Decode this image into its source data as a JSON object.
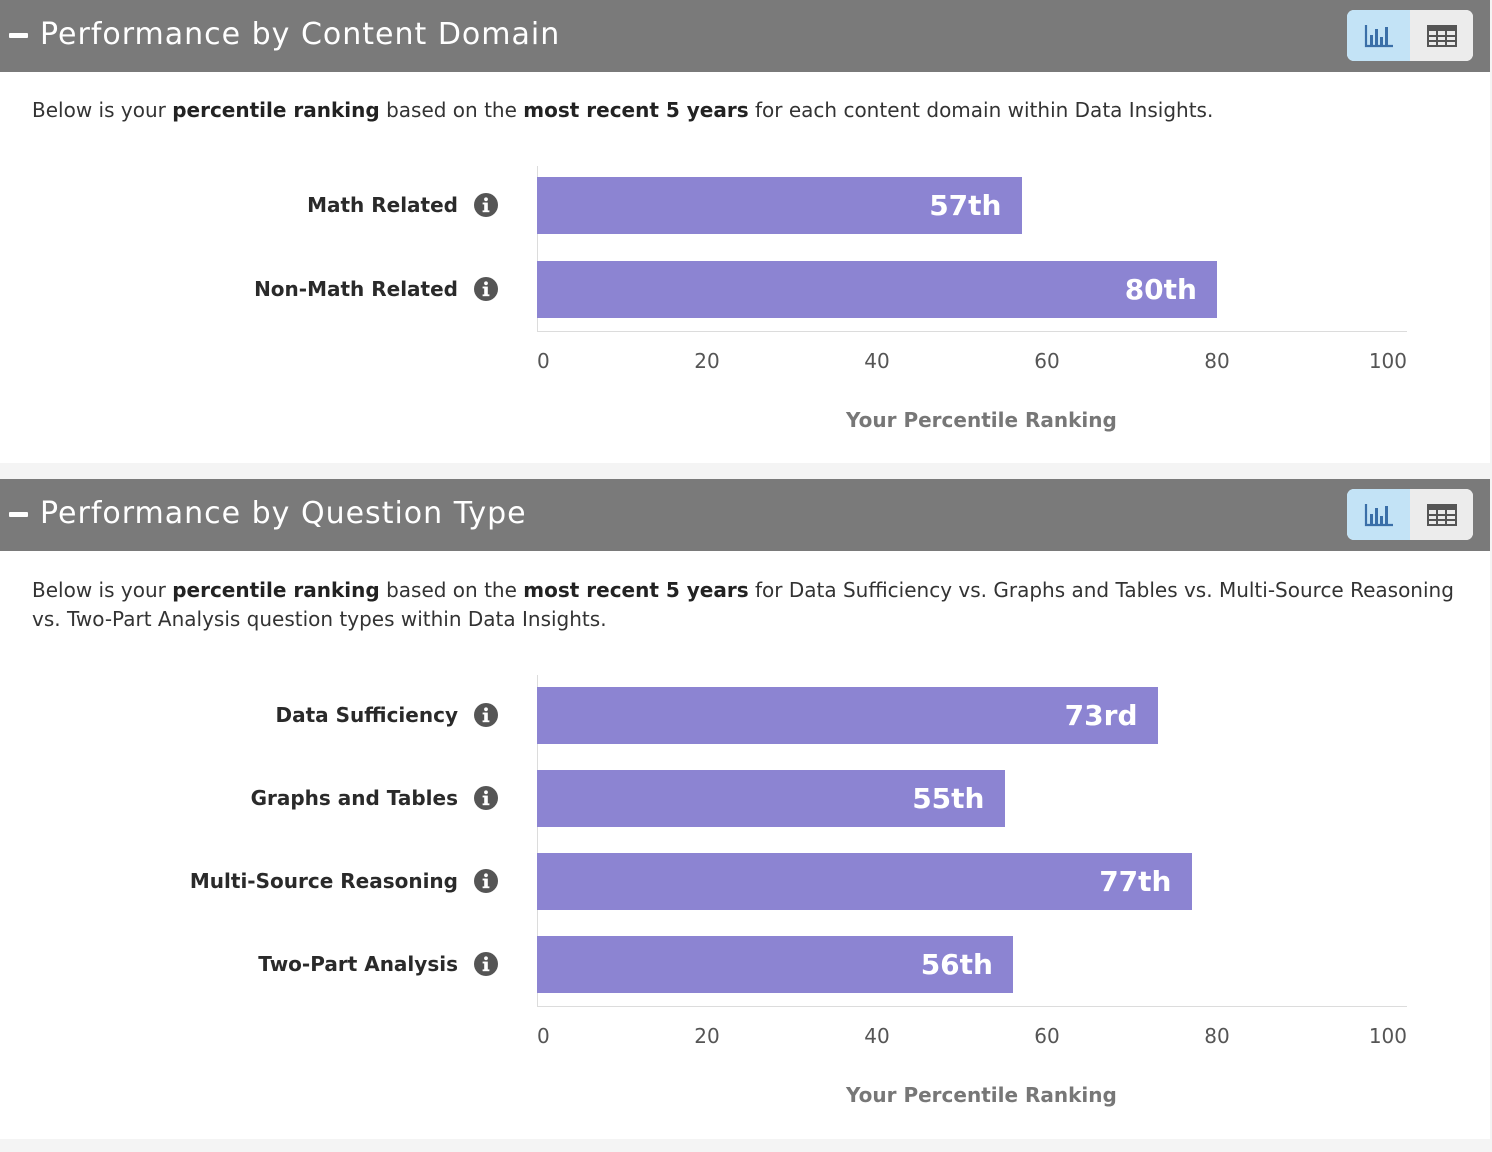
{
  "sections": [
    {
      "title": "Performance by Content Domain",
      "description": {
        "part1": "Below is your ",
        "bold1": "percentile ranking",
        "part2": " based on the ",
        "bold2": "most recent 5 years",
        "part3": " for each content domain within Data Insights."
      },
      "toggle": {
        "active": "chart",
        "icons": [
          "bar-chart-icon",
          "table-icon"
        ]
      }
    },
    {
      "title": "Performance by Question Type",
      "description": {
        "part1": "Below is your ",
        "bold1": "percentile ranking",
        "part2": " based on the ",
        "bold2": "most recent 5 years",
        "part3": " for Data Sufficiency vs. Graphs and Tables vs. Multi-Source Reasoning vs. Two-Part Analysis question types within Data Insights."
      },
      "toggle": {
        "active": "chart",
        "icons": [
          "bar-chart-icon",
          "table-icon"
        ]
      }
    }
  ],
  "chart_data": [
    {
      "type": "bar",
      "orientation": "horizontal",
      "categories": [
        "Math Related",
        "Non-Math Related"
      ],
      "values": [
        57,
        80
      ],
      "value_labels": [
        "57th",
        "80th"
      ],
      "xlabel": "Your Percentile Ranking",
      "xlim": [
        0,
        100
      ],
      "xticks": [
        "0",
        "20",
        "40",
        "60",
        "80",
        "100"
      ],
      "bar_color": "#8c84d2",
      "grid": false
    },
    {
      "type": "bar",
      "orientation": "horizontal",
      "categories": [
        "Data Sufficiency",
        "Graphs and Tables",
        "Multi-Source Reasoning",
        "Two-Part Analysis"
      ],
      "values": [
        73,
        55,
        77,
        56
      ],
      "value_labels": [
        "73rd",
        "55th",
        "77th",
        "56th"
      ],
      "xlabel": "Your Percentile Ranking",
      "xlim": [
        0,
        100
      ],
      "xticks": [
        "0",
        "20",
        "40",
        "60",
        "80",
        "100"
      ],
      "bar_color": "#8c84d2",
      "grid": false
    }
  ]
}
